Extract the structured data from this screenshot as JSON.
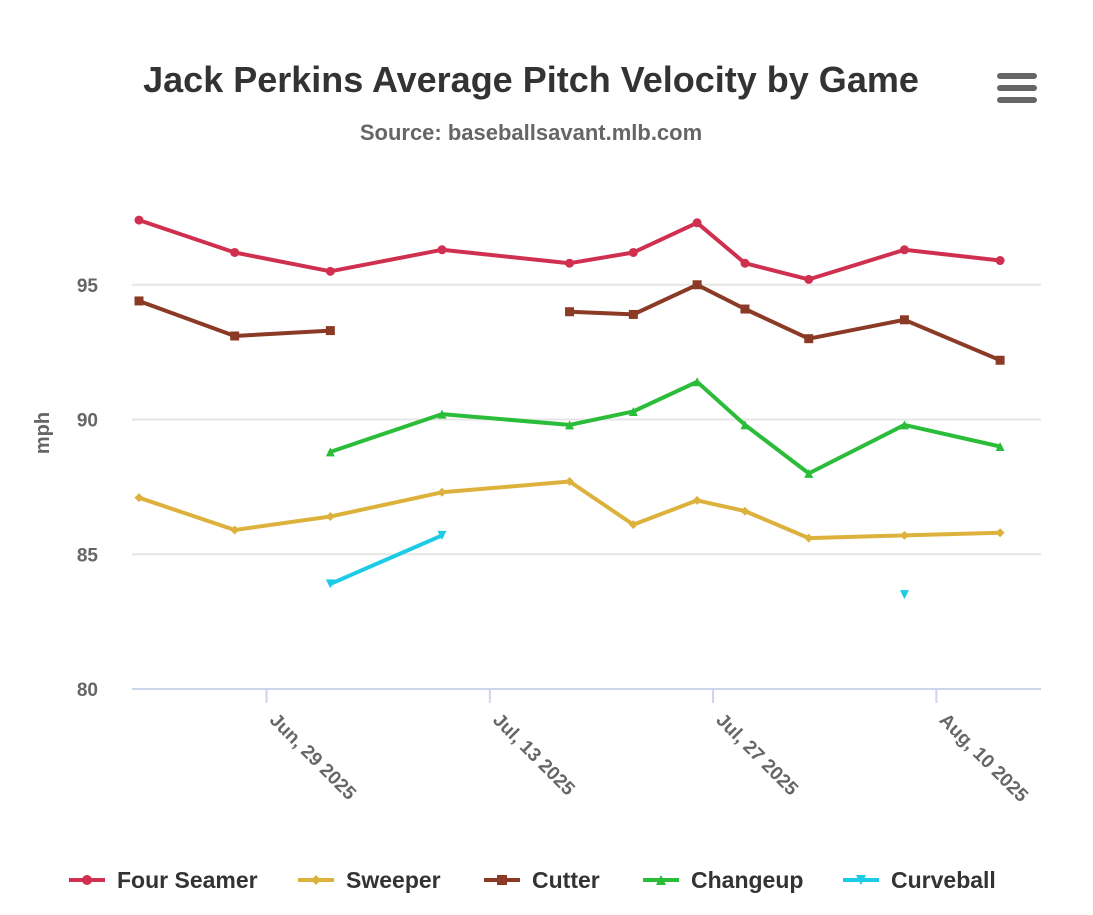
{
  "chart_data": {
    "type": "line",
    "title": "Jack Perkins Average Pitch Velocity by Game",
    "subtitle": "Source: baseballsavant.mlb.com",
    "ylabel": "mph",
    "xlabel": "",
    "ylim": [
      80,
      99
    ],
    "y_ticks": [
      80,
      85,
      90,
      95
    ],
    "x_range": [
      "2025-06-21",
      "2025-08-16"
    ],
    "x_ticks": [
      {
        "date": "2025-06-29",
        "label": "Jun, 29 2025"
      },
      {
        "date": "2025-07-13",
        "label": "Jul, 13 2025"
      },
      {
        "date": "2025-07-27",
        "label": "Jul, 27 2025"
      },
      {
        "date": "2025-08-10",
        "label": "Aug, 10 2025"
      }
    ],
    "grid": true,
    "legend_position": "bottom",
    "series": [
      {
        "name": "Four Seamer",
        "color": "#d0304f",
        "marker": "circle",
        "points": [
          [
            "2025-06-21",
            97.4
          ],
          [
            "2025-06-27",
            96.2
          ],
          [
            "2025-07-03",
            95.5
          ],
          [
            "2025-07-10",
            96.3
          ],
          [
            "2025-07-18",
            95.8
          ],
          [
            "2025-07-22",
            96.2
          ],
          [
            "2025-07-26",
            97.3
          ],
          [
            "2025-07-29",
            95.8
          ],
          [
            "2025-08-02",
            95.2
          ],
          [
            "2025-08-08",
            96.3
          ],
          [
            "2025-08-14",
            95.9
          ]
        ]
      },
      {
        "name": "Sweeper",
        "color": "#dcb23c",
        "marker": "diamond",
        "points": [
          [
            "2025-06-21",
            87.1
          ],
          [
            "2025-06-27",
            85.9
          ],
          [
            "2025-07-03",
            86.4
          ],
          [
            "2025-07-10",
            87.3
          ],
          [
            "2025-07-18",
            87.7
          ],
          [
            "2025-07-22",
            86.1
          ],
          [
            "2025-07-26",
            87.0
          ],
          [
            "2025-07-29",
            86.6
          ],
          [
            "2025-08-02",
            85.6
          ],
          [
            "2025-08-08",
            85.7
          ],
          [
            "2025-08-14",
            85.8
          ]
        ]
      },
      {
        "name": "Cutter",
        "color": "#8b3a26",
        "marker": "square",
        "points": [
          [
            "2025-06-21",
            94.4
          ],
          [
            "2025-06-27",
            93.1
          ],
          [
            "2025-07-03",
            93.3
          ],
          [
            "2025-07-10",
            null
          ],
          [
            "2025-07-18",
            94.0
          ],
          [
            "2025-07-22",
            93.9
          ],
          [
            "2025-07-26",
            95.0
          ],
          [
            "2025-07-29",
            94.1
          ],
          [
            "2025-08-02",
            93.0
          ],
          [
            "2025-08-08",
            93.7
          ],
          [
            "2025-08-14",
            92.2
          ]
        ]
      },
      {
        "name": "Changeup",
        "color": "#2bbd3a",
        "marker": "triangle",
        "points": [
          [
            "2025-07-03",
            88.8
          ],
          [
            "2025-07-10",
            90.2
          ],
          [
            "2025-07-18",
            89.8
          ],
          [
            "2025-07-22",
            90.3
          ],
          [
            "2025-07-26",
            91.4
          ],
          [
            "2025-07-29",
            89.8
          ],
          [
            "2025-08-02",
            88.0
          ],
          [
            "2025-08-08",
            89.8
          ],
          [
            "2025-08-14",
            89.0
          ]
        ]
      },
      {
        "name": "Curveball",
        "color": "#1ccbe6",
        "marker": "triangle-down",
        "points": [
          [
            "2025-07-03",
            83.9
          ],
          [
            "2025-07-10",
            85.7
          ],
          [
            "2025-07-18",
            null
          ],
          [
            "2025-08-08",
            83.5
          ]
        ]
      }
    ]
  }
}
